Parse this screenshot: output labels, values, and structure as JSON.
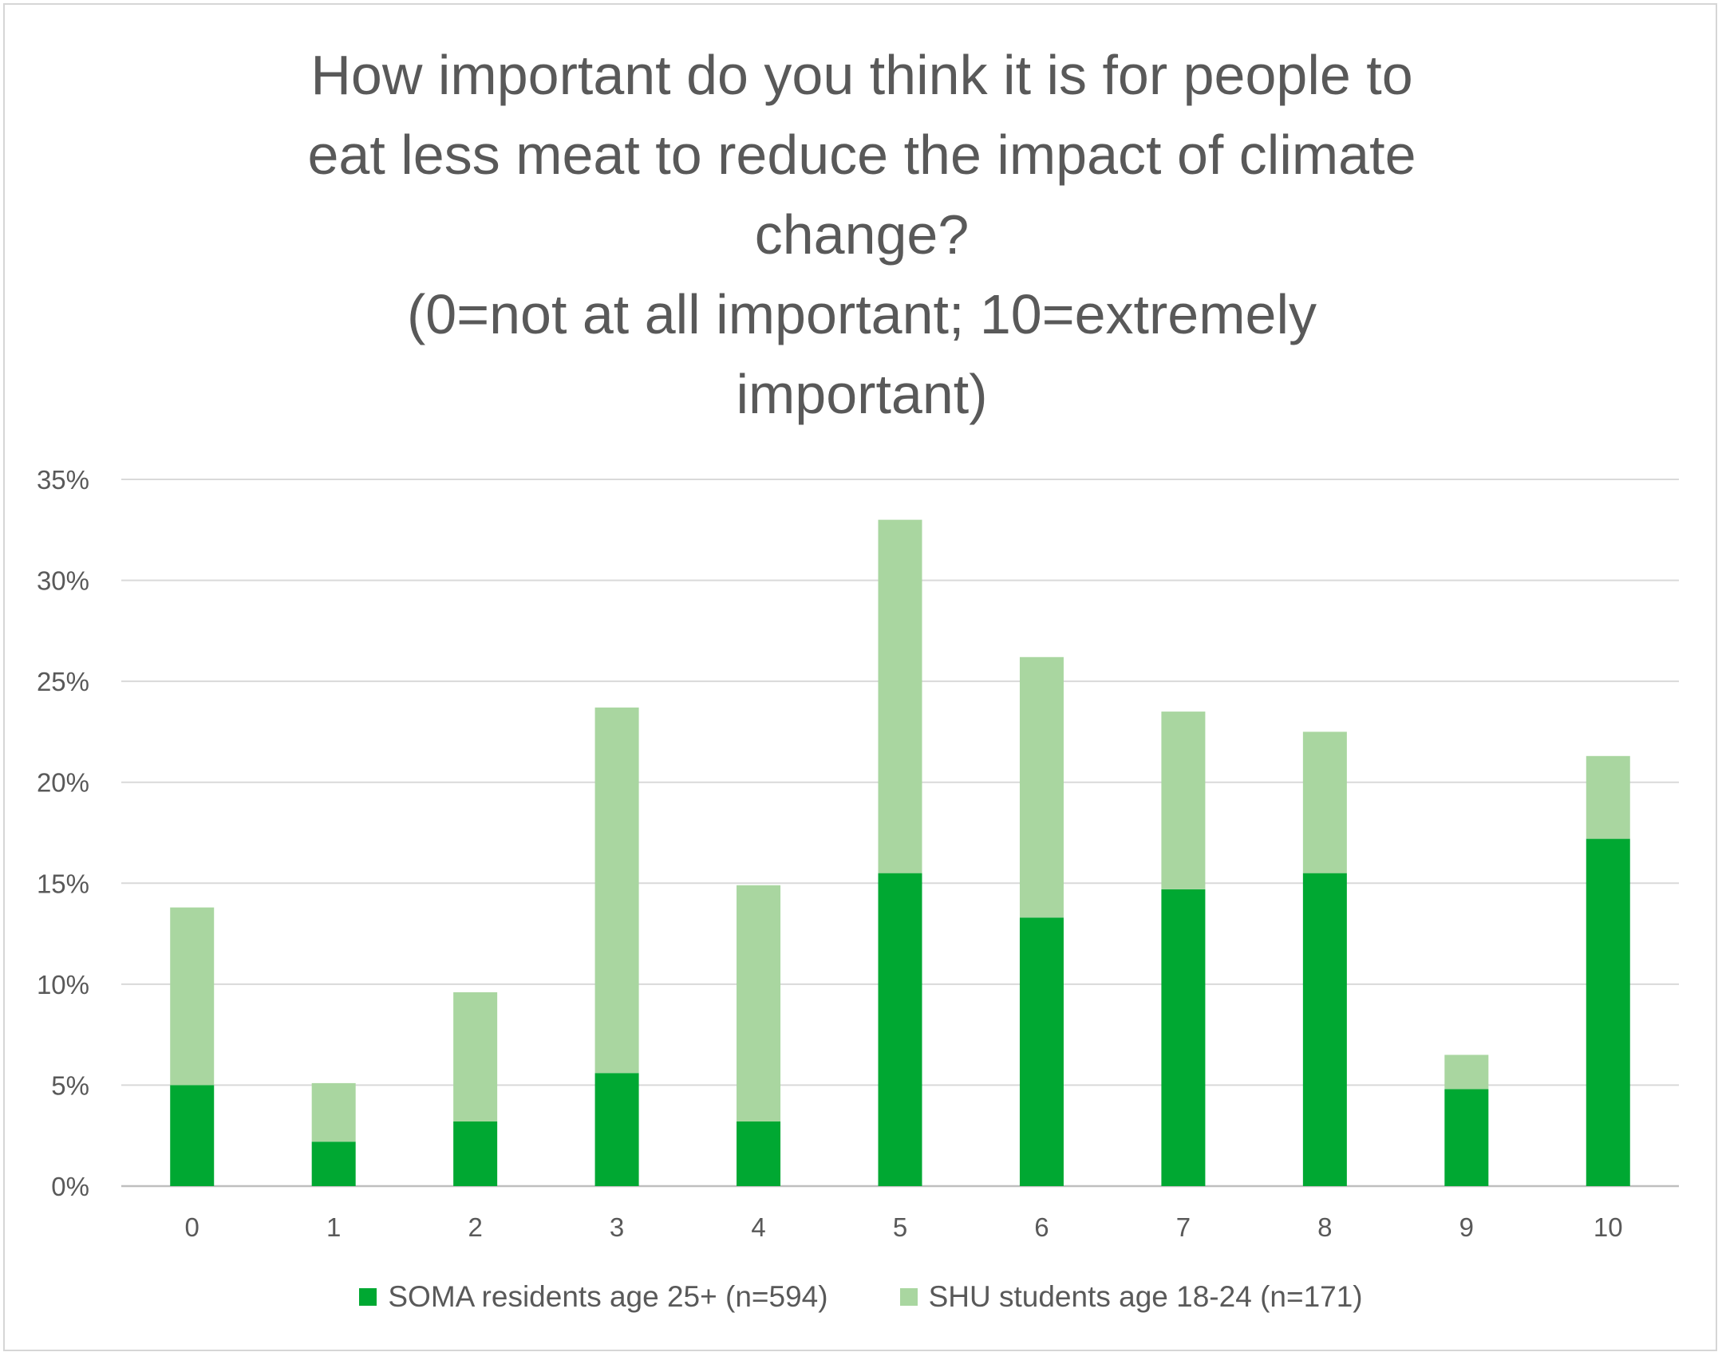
{
  "chart_data": {
    "type": "bar",
    "stacked": true,
    "title_lines": [
      "How important do you think it is for people to",
      "eat less meat to reduce the impact of climate",
      "change?",
      "(0=not at all important; 10=extremely",
      "important)"
    ],
    "categories": [
      "0",
      "1",
      "2",
      "3",
      "4",
      "5",
      "6",
      "7",
      "8",
      "9",
      "10"
    ],
    "series": [
      {
        "name": "SOMA residents age 25+ (n=594)",
        "color": "#00a832",
        "values": [
          5.0,
          2.2,
          3.2,
          5.6,
          3.2,
          15.5,
          13.3,
          14.7,
          15.5,
          4.8,
          17.2
        ]
      },
      {
        "name": "SHU students age 18-24 (n=171)",
        "color": "#a9d6a0",
        "values": [
          8.8,
          2.9,
          6.4,
          18.1,
          11.7,
          17.5,
          12.9,
          8.8,
          7.0,
          1.7,
          4.1
        ]
      }
    ],
    "ylim": [
      0,
      35
    ],
    "yticks": [
      "0%",
      "5%",
      "10%",
      "15%",
      "20%",
      "25%",
      "30%",
      "35%"
    ],
    "ytick_values": [
      0,
      5,
      10,
      15,
      20,
      25,
      30,
      35
    ],
    "grid": true,
    "legend_position": "bottom"
  }
}
